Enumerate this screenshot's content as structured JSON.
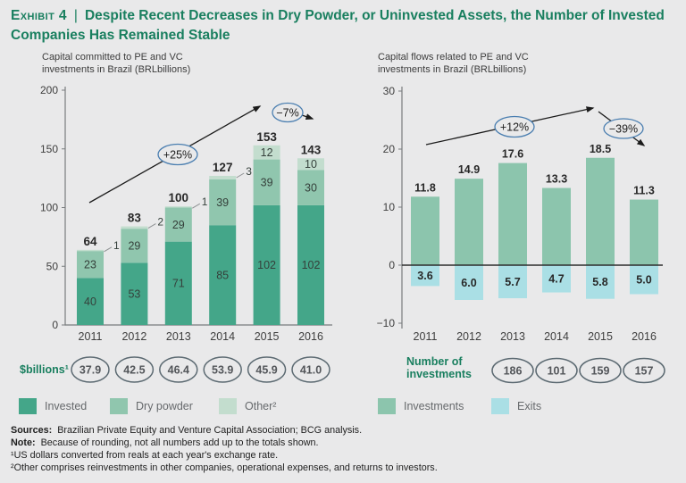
{
  "title": {
    "prefix": "Exhibit 4",
    "separator": "|",
    "text": "Despite Recent Decreases in Dry Powder, or Uninvested Assets, the Number of Invested Companies Has Remained Stable"
  },
  "colors": {
    "background": "#e9e9ea",
    "title_green": "#197f5f",
    "invested": "#44a689",
    "dry_powder": "#90c6ae",
    "other": "#c3ddce",
    "investments": "#8cc5ad",
    "exits": "#aadfe5",
    "oval_stroke": "#5c6a72",
    "annotation_stroke": "#4a7eb0",
    "axis_gray": "#797c7e"
  },
  "chart_data": [
    {
      "type": "bar",
      "stacked": true,
      "title": "Capital committed to PE and VC investments in Brazil (BRLbillions)",
      "categories": [
        "2011",
        "2012",
        "2013",
        "2014",
        "2015",
        "2016"
      ],
      "series": [
        {
          "name": "Invested",
          "values": [
            40,
            53,
            71,
            85,
            102,
            102
          ]
        },
        {
          "name": "Dry powder",
          "values": [
            23,
            29,
            29,
            39,
            39,
            30
          ]
        },
        {
          "name": "Other",
          "values": [
            1,
            2,
            1,
            3,
            12,
            10
          ]
        }
      ],
      "totals": [
        64,
        83,
        100,
        127,
        153,
        143
      ],
      "ylim": [
        0,
        200
      ],
      "yticks": [
        0,
        50,
        100,
        150,
        200
      ],
      "grid": false,
      "annotations": [
        "+25%",
        "−7%"
      ],
      "value_row": {
        "label_lines": [
          "$billions¹"
        ],
        "values": [
          "37.9",
          "42.5",
          "46.4",
          "53.9",
          "45.9",
          "41.0"
        ],
        "start_index": 0
      }
    },
    {
      "type": "bar",
      "stacked": false,
      "title": "Capital flows related to PE and VC investments in Brazil (BRLbillions)",
      "categories": [
        "2011",
        "2012",
        "2013",
        "2014",
        "2015",
        "2016"
      ],
      "series": [
        {
          "name": "Investments",
          "values": [
            11.8,
            14.9,
            17.6,
            13.3,
            18.5,
            11.3
          ],
          "labels": [
            "11.8",
            "14.9",
            "17.6",
            "13.3",
            "18.5",
            "11.3"
          ]
        },
        {
          "name": "Exits",
          "values": [
            -3.6,
            -6.0,
            -5.7,
            -4.7,
            -5.8,
            -5.0
          ],
          "labels": [
            "3.6",
            "6.0",
            "5.7",
            "4.7",
            "5.8",
            "5.0"
          ]
        }
      ],
      "ylim": [
        -10,
        30
      ],
      "yticks": [
        -10,
        0,
        10,
        20,
        30
      ],
      "grid": false,
      "annotations": [
        "+12%",
        "−39%"
      ],
      "value_row": {
        "label_lines": [
          "Number of",
          "investments"
        ],
        "values": [
          "186",
          "101",
          "159",
          "157"
        ],
        "start_index": 2
      }
    }
  ],
  "legends": {
    "left": [
      {
        "name": "Invested",
        "color": "#44a689"
      },
      {
        "name": "Dry powder",
        "color": "#90c6ae"
      },
      {
        "name": "Other²",
        "color": "#c3ddce"
      }
    ],
    "right": [
      {
        "name": "Investments",
        "color": "#8cc5ad"
      },
      {
        "name": "Exits",
        "color": "#aadfe5"
      }
    ]
  },
  "footnotes": [
    {
      "lead": "Sources:",
      "text": " Brazilian Private Equity and Venture Capital Association; BCG analysis."
    },
    {
      "lead": "Note:",
      "text": " Because of rounding, not all numbers add up to the totals shown."
    },
    {
      "lead": "",
      "text": "¹US dollars converted from reals at each year's exchange rate."
    },
    {
      "lead": "",
      "text": "²Other comprises reinvestments in other companies, operational expenses, and returns to investors."
    }
  ]
}
